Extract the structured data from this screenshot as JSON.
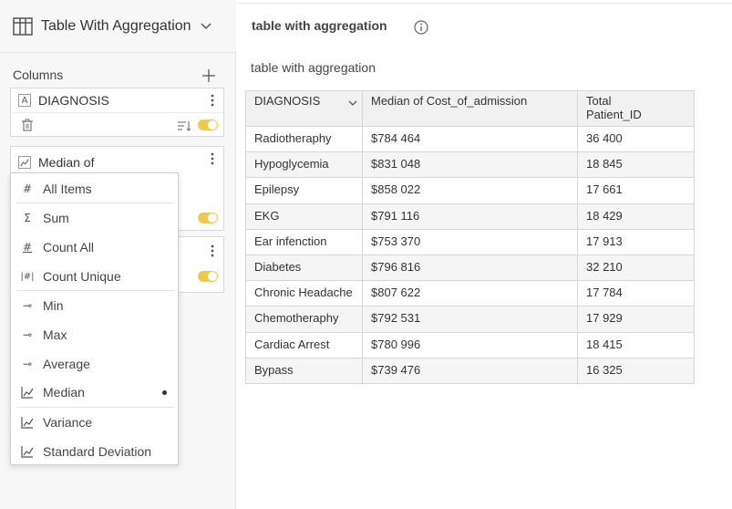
{
  "viz_header": {
    "title": "Table With Aggregation"
  },
  "columns_panel": {
    "label": "Columns",
    "cards": [
      {
        "type_glyph": "A",
        "label": "DIAGNOSIS"
      },
      {
        "label": "Median of"
      },
      {
        "label": ""
      }
    ]
  },
  "agg_menu": {
    "items": [
      {
        "glyph": "#",
        "label": "All Items"
      },
      {
        "glyph": "Σ",
        "label": "Sum"
      },
      {
        "glyph": "#",
        "label": "Count All"
      },
      {
        "glyph": "|#|",
        "label": "Count Unique"
      },
      {
        "glyph": "⊸",
        "label": "Min"
      },
      {
        "glyph": "⊸",
        "label": "Max"
      },
      {
        "glyph": "⊸",
        "label": "Average"
      },
      {
        "glyph": "",
        "label": "Median"
      },
      {
        "glyph": "",
        "label": "Variance"
      },
      {
        "glyph": "",
        "label": "Standard Deviation"
      }
    ],
    "selected": "Median"
  },
  "report": {
    "title": "table with aggregation",
    "subtitle": "table with aggregation"
  },
  "table": {
    "headers": [
      "DIAGNOSIS",
      "Median of Cost_of_admission",
      "Total Patient_ID"
    ],
    "rows": [
      [
        "Radiotheraphy",
        "$784 464",
        "36 400"
      ],
      [
        "Hypoglycemia",
        "$831 048",
        "18 845"
      ],
      [
        "Epilepsy",
        "$858 022",
        "17 661"
      ],
      [
        "EKG",
        "$791 116",
        "18 429"
      ],
      [
        "Ear infenction",
        "$753 370",
        "17 913"
      ],
      [
        "Diabetes",
        "$796 816",
        "32 210"
      ],
      [
        "Chronic Headache",
        "$807 622",
        "17 784"
      ],
      [
        "Chemotheraphy",
        "$792 531",
        "17 929"
      ],
      [
        "Cardiac Arrest",
        "$780 996",
        "18 415"
      ],
      [
        "Bypass",
        "$739 476",
        "16 325"
      ]
    ]
  },
  "colors": {
    "toggle": "#f2c94c",
    "header_bg": "#f1f1f1",
    "border": "#d6d6d6"
  }
}
